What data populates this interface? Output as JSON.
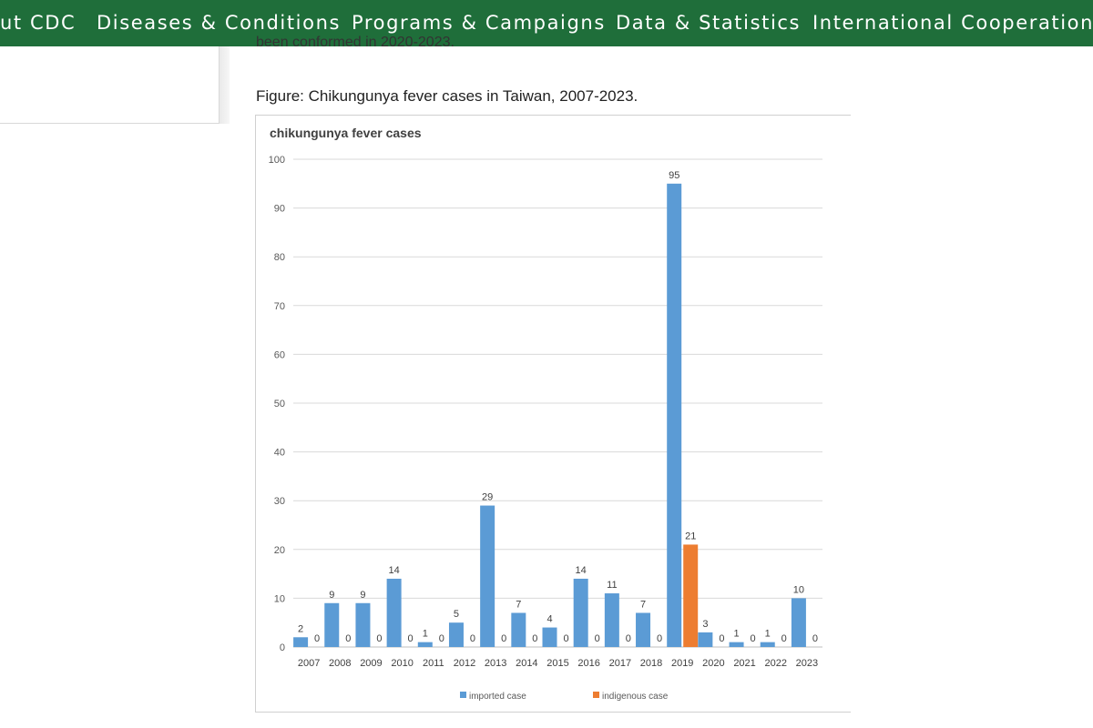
{
  "nav": {
    "items": [
      {
        "label": "ut CDC"
      },
      {
        "label": "Diseases & Conditions"
      },
      {
        "label": "Programs & Campaigns"
      },
      {
        "label": "Data & Statistics"
      },
      {
        "label": "International Cooperation"
      }
    ]
  },
  "article": {
    "prev_text": "been conformed in 2020-2023.",
    "figure_caption": "Figure: Chikungunya fever cases in Taiwan, 2007-2023."
  },
  "colors": {
    "nav_background": "#1f6e3a",
    "imported": "#5b9bd5",
    "indigenous": "#ed7d31"
  },
  "chart_data": {
    "type": "bar",
    "title": "chikungunya fever cases",
    "xlabel": "",
    "ylabel": "",
    "ylim": [
      0,
      100
    ],
    "yticks": [
      0,
      10,
      20,
      30,
      40,
      50,
      60,
      70,
      80,
      90,
      100
    ],
    "grid": true,
    "legend_position": "bottom",
    "categories": [
      "2007",
      "2008",
      "2009",
      "2010",
      "2011",
      "2012",
      "2013",
      "2014",
      "2015",
      "2016",
      "2017",
      "2018",
      "2019",
      "2020",
      "2021",
      "2022",
      "2023"
    ],
    "series": [
      {
        "name": "imported case",
        "values": [
          2,
          9,
          9,
          14,
          1,
          5,
          29,
          7,
          4,
          14,
          11,
          7,
          95,
          3,
          1,
          1,
          10
        ]
      },
      {
        "name": "indigenous case",
        "values": [
          0,
          0,
          0,
          0,
          0,
          0,
          0,
          0,
          0,
          0,
          0,
          0,
          21,
          0,
          0,
          0,
          0
        ]
      }
    ]
  }
}
